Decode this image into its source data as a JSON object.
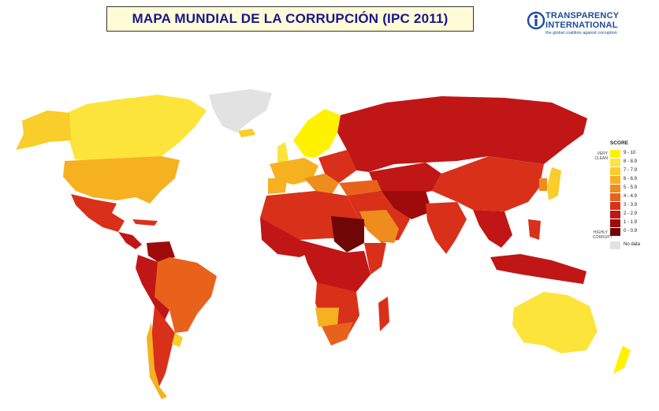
{
  "header": {
    "title": "MAPA MUNDIAL DE LA CORRUPCIÓN  (IPC 2011)"
  },
  "logo": {
    "line1": "TRANSPARENCY",
    "line2": "INTERNATIONAL",
    "tagline": "the global coalition against corruption",
    "color": "#1c4c9c"
  },
  "legend": {
    "title": "SCORE",
    "very_clean_label": "VERY CLEAN",
    "highly_corrupt_label": "HIGHLY CORRUPT",
    "items": [
      {
        "label": "9 - 10",
        "color": "#fff200"
      },
      {
        "label": "8 - 8.9",
        "color": "#fce43a"
      },
      {
        "label": "7 - 7.9",
        "color": "#f9cd2a"
      },
      {
        "label": "6 - 6.9",
        "color": "#f5b120"
      },
      {
        "label": "5 - 5.9",
        "color": "#ef8c1e"
      },
      {
        "label": "4 - 4.9",
        "color": "#e8621b"
      },
      {
        "label": "3 - 3.9",
        "color": "#d9301a"
      },
      {
        "label": "2 - 2.9",
        "color": "#c11616"
      },
      {
        "label": "1 - 1.9",
        "color": "#9d0b0b"
      },
      {
        "label": "0 - 0.9",
        "color": "#700707"
      },
      {
        "label": "No data",
        "color": "#e2e2e2"
      }
    ]
  }
}
